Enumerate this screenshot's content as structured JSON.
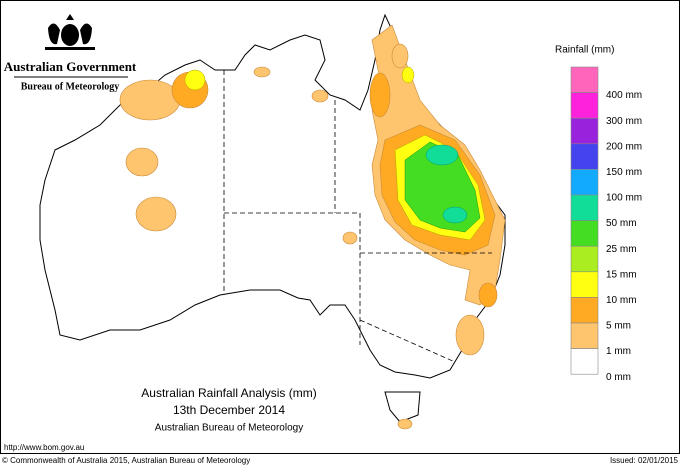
{
  "header": {
    "government": "Australian Government",
    "bureau": "Bureau of Meteorology"
  },
  "title": {
    "line1": "Australian Rainfall Analysis (mm)",
    "line2": "13th December 2014",
    "line3": "Australian Bureau of Meteorology"
  },
  "legend": {
    "title": "Rainfall (mm)",
    "colors": [
      "#ff66bb",
      "#ff22dd",
      "#9922dd",
      "#4444ee",
      "#11aaff",
      "#11dd99",
      "#44dd22",
      "#aaee22",
      "#ffff11",
      "#ffaa22",
      "#ffc46e",
      "#ffffff"
    ],
    "labels": [
      "400 mm",
      "300 mm",
      "200 mm",
      "150 mm",
      "100 mm",
      "50 mm",
      "25 mm",
      "15 mm",
      "10 mm",
      "5 mm",
      "1 mm",
      "0 mm"
    ]
  },
  "footer": {
    "url": "http://www.bom.gov.au",
    "copyright": "© Commonwealth of Australia 2015, Australian Bureau of Meteorology",
    "issued": "Issued: 02/01/2015"
  }
}
